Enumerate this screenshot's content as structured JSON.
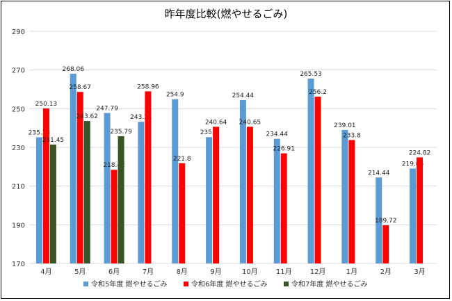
{
  "chart_data": {
    "type": "bar",
    "title": "昨年度比較(燃やせるごみ)",
    "xlabel": "",
    "ylabel": "",
    "categories": [
      "4月",
      "5月",
      "6月",
      "7月",
      "8月",
      "9月",
      "10月",
      "11月",
      "12月",
      "1月",
      "2月",
      "3月"
    ],
    "series": [
      {
        "name": "令和5年度 燃やせるごみ",
        "color": "#5b9bd5",
        "values": [
          235.23,
          268.06,
          247.79,
          243.21,
          254.9,
          235.3,
          254.44,
          234.44,
          265.53,
          239.01,
          214.44,
          219.05
        ]
      },
      {
        "name": "令和6年度 燃やせるごみ",
        "color": "#ff0000",
        "values": [
          250.13,
          258.67,
          218.42,
          258.96,
          221.8,
          240.64,
          240.65,
          226.91,
          256.2,
          233.8,
          189.72,
          224.82
        ]
      },
      {
        "name": "令和7年度 燃やせるごみ",
        "color": "#375623",
        "values": [
          231.45,
          243.62,
          235.79,
          null,
          null,
          null,
          null,
          null,
          null,
          null,
          null,
          null
        ]
      }
    ],
    "ylim": [
      170,
      290
    ],
    "yticks": [
      170,
      190,
      210,
      230,
      250,
      270,
      290
    ],
    "grid": true,
    "legend_position": "bottom"
  }
}
